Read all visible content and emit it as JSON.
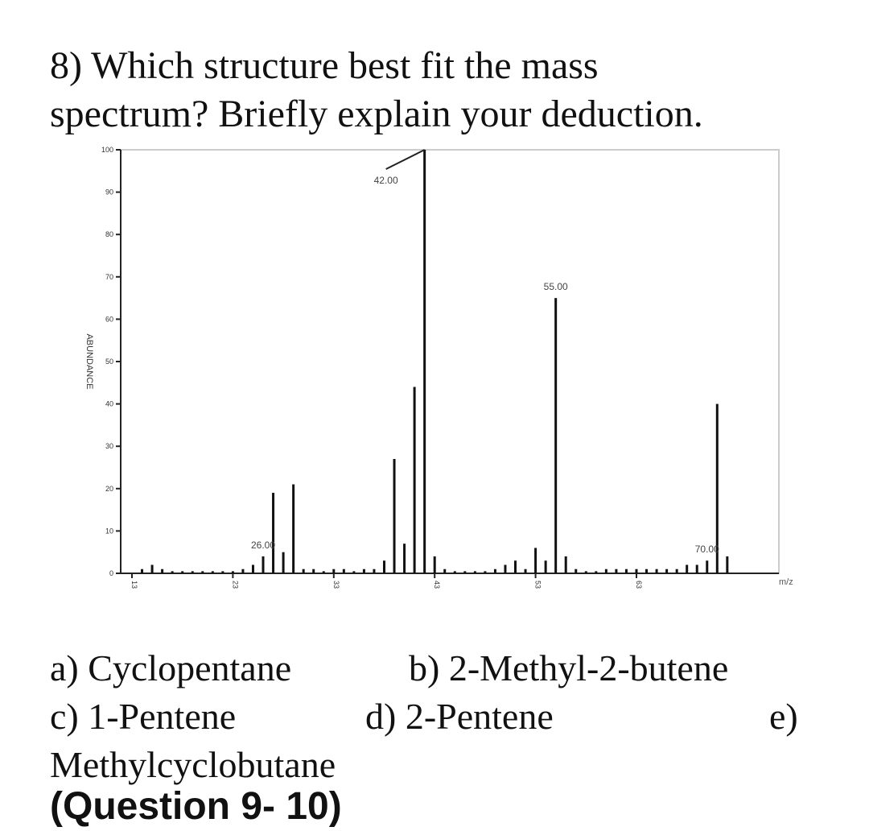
{
  "question": {
    "line1": "8) Which structure best fit the mass",
    "line2": "spectrum? Briefly explain your deduction."
  },
  "chart_data": {
    "type": "bar",
    "ylabel": "ABUNDANCE",
    "xlabel": "m/z",
    "xlim": [
      13,
      76
    ],
    "ylim": [
      0,
      100
    ],
    "x_ticks": [
      "13",
      "23",
      "33",
      "43",
      "53",
      "63"
    ],
    "y_ticks": [
      "0",
      "10",
      "20",
      "30",
      "40",
      "50",
      "60",
      "70",
      "80",
      "90",
      "100"
    ],
    "peak_labels": [
      {
        "x": 26,
        "text": "26.00"
      },
      {
        "x": 42,
        "text": "42.00"
      },
      {
        "x": 55,
        "text": "55.00"
      },
      {
        "x": 70,
        "text": "70.00"
      }
    ],
    "x": [
      14,
      15,
      16,
      17,
      18,
      19,
      20,
      21,
      22,
      23,
      24,
      25,
      26,
      27,
      28,
      29,
      30,
      31,
      32,
      33,
      34,
      35,
      36,
      37,
      38,
      39,
      40,
      41,
      42,
      43,
      44,
      45,
      46,
      47,
      48,
      49,
      50,
      51,
      52,
      53,
      54,
      55,
      56,
      57,
      58,
      59,
      60,
      61,
      62,
      63,
      64,
      65,
      66,
      67,
      68,
      69,
      70,
      71,
      72
    ],
    "values": [
      1,
      2,
      1,
      0.5,
      0.5,
      0.5,
      0.5,
      0.5,
      0.5,
      0.5,
      1,
      2,
      4,
      19,
      5,
      21,
      1,
      1,
      0.5,
      1,
      1,
      0.5,
      1,
      1,
      3,
      27,
      7,
      44,
      100,
      4,
      1,
      0.5,
      0.5,
      0.5,
      0.5,
      1,
      2,
      3,
      1,
      6,
      3,
      65,
      4,
      1,
      0.5,
      0.5,
      1,
      1,
      1,
      1,
      1,
      1,
      1,
      1,
      2,
      2,
      3,
      40,
      4
    ]
  },
  "answers": {
    "a": "a) Cyclopentane",
    "b": "b) 2-Methyl-2-butene",
    "c": "c) 1-Pentene",
    "d": "d) 2-Pentene",
    "e": "e)",
    "e_cont": "Methylcyclobutane"
  },
  "cutoff": "(Question 9- 10)"
}
